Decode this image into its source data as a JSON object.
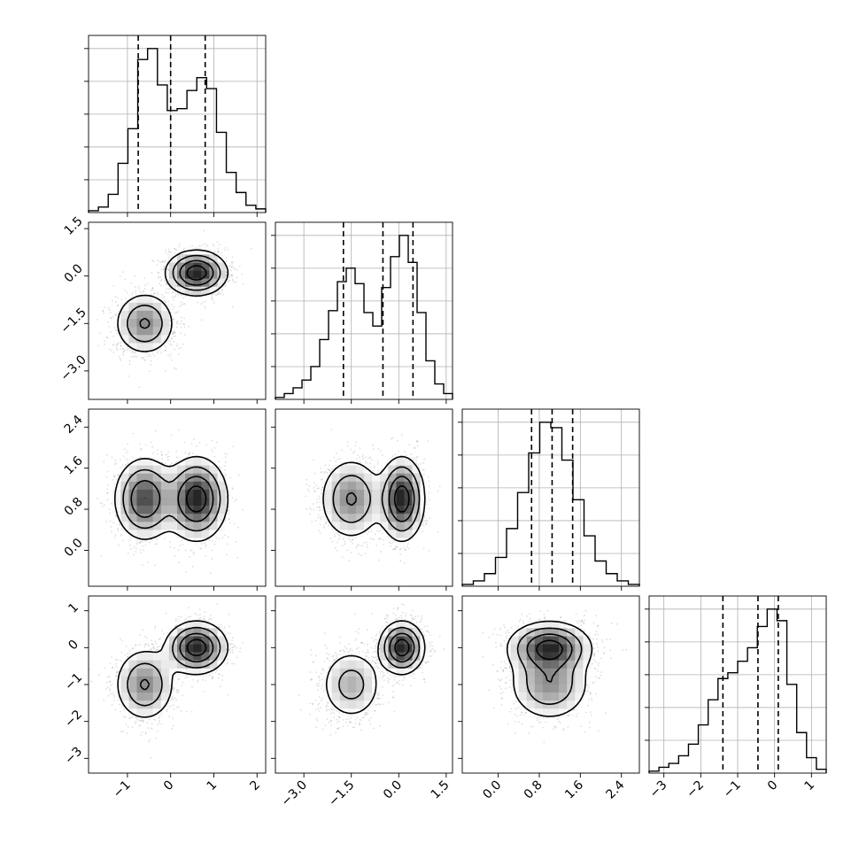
{
  "chart_data": {
    "type": "corner",
    "parameters": [
      {
        "range": [
          -1.9,
          2.2
        ],
        "ticks": [
          -1,
          0,
          1,
          2
        ],
        "ticklabels": [
          "−1",
          "0",
          "1",
          "2"
        ],
        "quantiles": [
          -0.75,
          0.0,
          0.8
        ],
        "hist": [
          1,
          3,
          10,
          27,
          46,
          84,
          90,
          70,
          56,
          57,
          67,
          74,
          68,
          44,
          22,
          11,
          4,
          2
        ]
      },
      {
        "range": [
          -3.9,
          1.7
        ],
        "ticks": [
          -3.0,
          -1.5,
          0.0,
          1.5
        ],
        "ticklabels": [
          "−3.0",
          "−1.5",
          "0.0",
          "1.5"
        ],
        "quantiles": [
          -1.75,
          -0.5,
          0.45
        ],
        "hist": [
          1,
          3,
          6,
          10,
          17,
          31,
          46,
          61,
          68,
          60,
          45,
          38,
          58,
          74,
          85,
          71,
          45,
          20,
          8,
          3
        ]
      },
      {
        "range": [
          -0.7,
          2.75
        ],
        "ticks": [
          0.0,
          0.8,
          1.6,
          2.4
        ],
        "ticklabels": [
          "0.0",
          "0.8",
          "1.6",
          "2.4"
        ],
        "quantiles": [
          0.65,
          1.05,
          1.45
        ],
        "hist": [
          1,
          3,
          7,
          16,
          32,
          52,
          74,
          91,
          88,
          70,
          48,
          28,
          14,
          7,
          3,
          1
        ]
      },
      {
        "range": [
          -3.4,
          1.4
        ],
        "ticks": [
          -3,
          -2,
          -1,
          0,
          1
        ],
        "ticklabels": [
          "−3",
          "−2",
          "−1",
          "0",
          "1"
        ],
        "quantiles": [
          -1.4,
          -0.45,
          0.1
        ],
        "hist": [
          1,
          3,
          5,
          9,
          15,
          25,
          38,
          49,
          52,
          58,
          65,
          76,
          85,
          79,
          46,
          21,
          8,
          2
        ]
      }
    ],
    "modes": [
      {
        "weight": 0.45,
        "mean": [
          -0.6,
          -1.5,
          1.0,
          -1.0
        ],
        "sd": [
          0.35,
          0.5,
          0.4,
          0.5
        ]
      },
      {
        "weight": 0.55,
        "mean": [
          0.6,
          0.1,
          1.0,
          0.0
        ],
        "sd": [
          0.35,
          0.35,
          0.4,
          0.35
        ]
      }
    ],
    "grid": true,
    "title": "",
    "xlabel": "",
    "ylabel": ""
  }
}
